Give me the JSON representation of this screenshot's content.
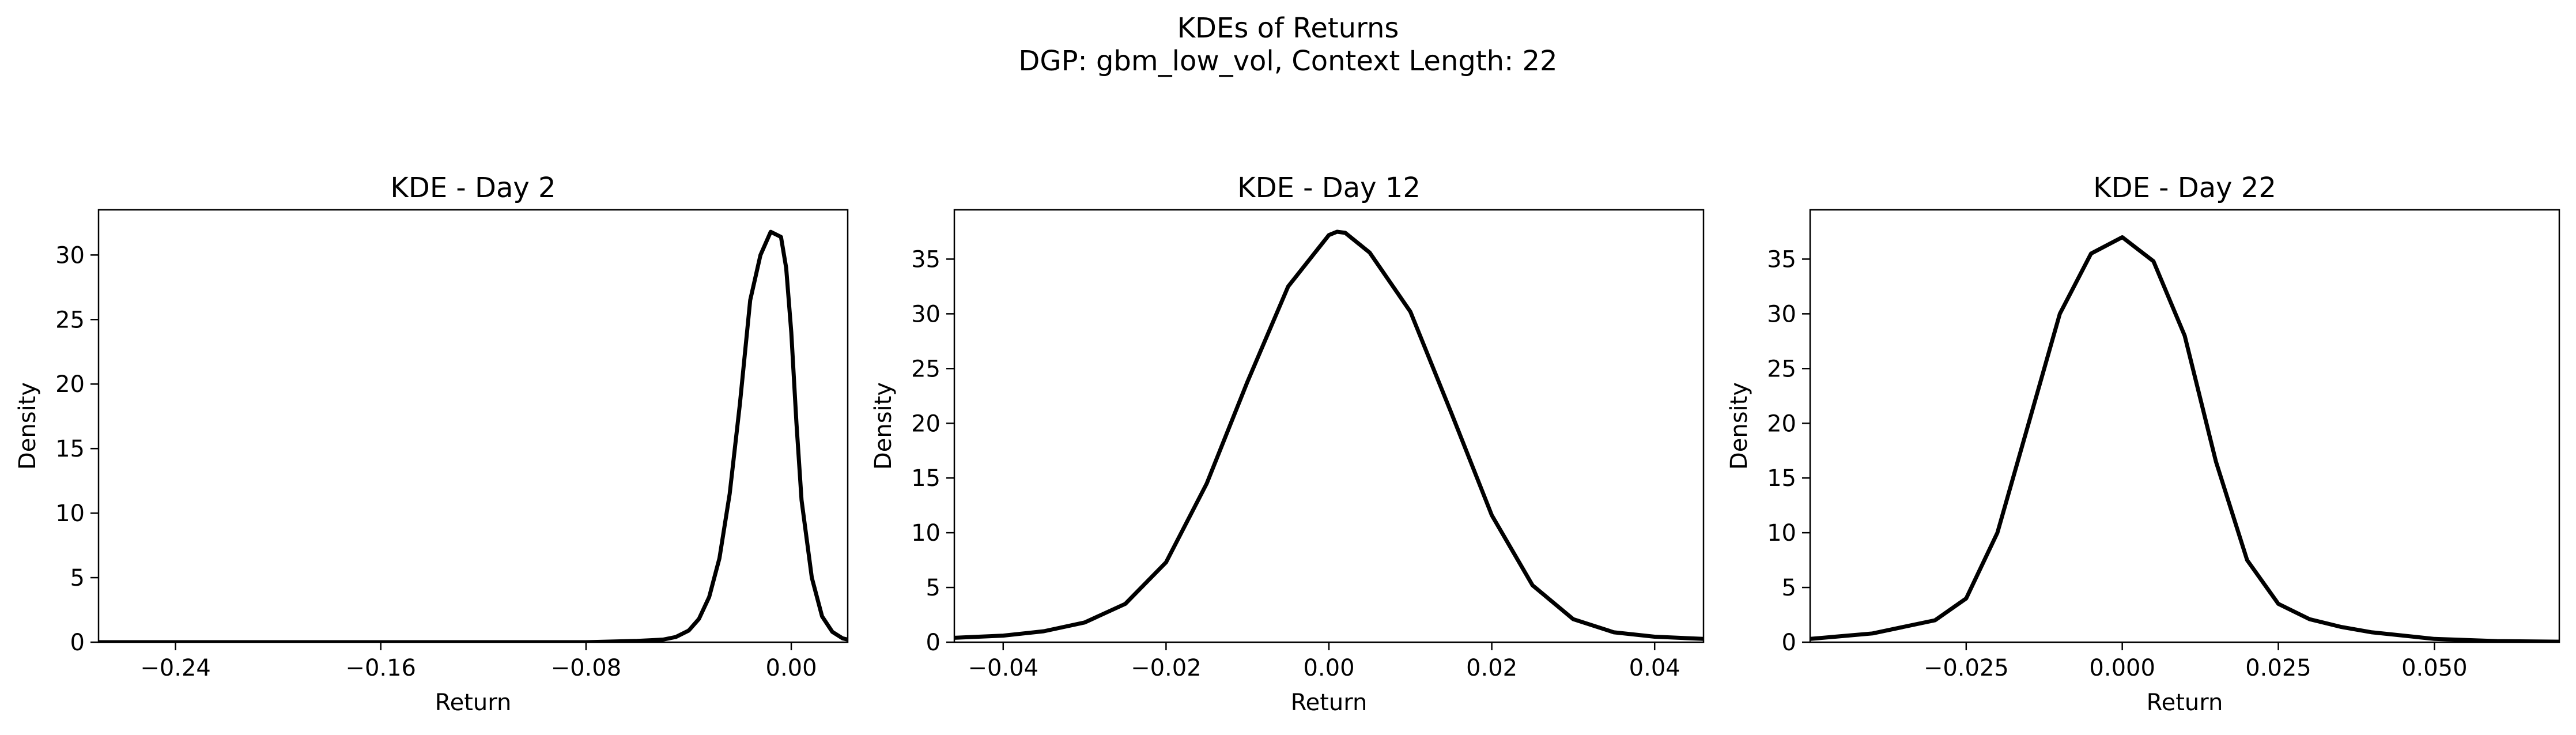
{
  "figure": {
    "title": "KDEs of Returns",
    "subtitle": "DGP: gbm_low_vol, Context Length: 22",
    "line_color": "#000000"
  },
  "chart_data": [
    {
      "type": "line",
      "title": "KDE - Day 2",
      "xlabel": "Return",
      "ylabel": "Density",
      "xlim": [
        -0.27,
        0.022
      ],
      "ylim": [
        0,
        33.5
      ],
      "xticks": [
        -0.24,
        -0.16,
        -0.08,
        0.0
      ],
      "xtick_labels": [
        "−0.24",
        "−0.16",
        "−0.08",
        "0.00"
      ],
      "yticks": [
        0,
        5,
        10,
        15,
        20,
        25,
        30
      ],
      "ytick_labels": [
        "0",
        "5",
        "10",
        "15",
        "20",
        "25",
        "30"
      ],
      "grid": false,
      "series": [
        {
          "x": [
            -0.27,
            -0.24,
            -0.2,
            -0.16,
            -0.12,
            -0.08,
            -0.06,
            -0.05,
            -0.045,
            -0.04,
            -0.036,
            -0.032,
            -0.028,
            -0.024,
            -0.02,
            -0.016,
            -0.012,
            -0.008,
            -0.004,
            -0.002,
            0.0,
            0.002,
            0.004,
            0.008,
            0.012,
            0.016,
            0.02,
            0.022
          ],
          "y": [
            0,
            0,
            0,
            0,
            0,
            0,
            0.1,
            0.2,
            0.4,
            0.9,
            1.8,
            3.5,
            6.5,
            11.5,
            18.5,
            26.5,
            30.0,
            31.8,
            31.4,
            29.0,
            24.0,
            17.0,
            11.0,
            5.0,
            2.0,
            0.8,
            0.3,
            0.2
          ]
        }
      ]
    },
    {
      "type": "line",
      "title": "KDE - Day 12",
      "xlabel": "Return",
      "ylabel": "Density",
      "xlim": [
        -0.046,
        0.046
      ],
      "ylim": [
        0,
        39.5
      ],
      "xticks": [
        -0.04,
        -0.02,
        0.0,
        0.02,
        0.04
      ],
      "xtick_labels": [
        "−0.04",
        "−0.02",
        "0.00",
        "0.02",
        "0.04"
      ],
      "yticks": [
        0,
        5,
        10,
        15,
        20,
        25,
        30,
        35
      ],
      "ytick_labels": [
        "0",
        "5",
        "10",
        "15",
        "20",
        "25",
        "30",
        "35"
      ],
      "grid": false,
      "series": [
        {
          "x": [
            -0.046,
            -0.04,
            -0.035,
            -0.03,
            -0.025,
            -0.02,
            -0.015,
            -0.01,
            -0.005,
            0.0,
            0.001,
            0.002,
            0.005,
            0.01,
            0.015,
            0.02,
            0.025,
            0.03,
            0.035,
            0.04,
            0.046
          ],
          "y": [
            0.4,
            0.6,
            1.0,
            1.8,
            3.5,
            7.3,
            14.5,
            23.8,
            32.5,
            37.2,
            37.5,
            37.4,
            35.6,
            30.2,
            21.0,
            11.6,
            5.2,
            2.1,
            0.9,
            0.5,
            0.3
          ]
        }
      ]
    },
    {
      "type": "line",
      "title": "KDE - Day 22",
      "xlabel": "Return",
      "ylabel": "Density",
      "xlim": [
        -0.05,
        0.07
      ],
      "ylim": [
        0,
        39.5
      ],
      "xticks": [
        -0.025,
        0.0,
        0.025,
        0.05
      ],
      "xtick_labels": [
        "−0.025",
        "0.000",
        "0.025",
        "0.050"
      ],
      "yticks": [
        0,
        5,
        10,
        15,
        20,
        25,
        30,
        35
      ],
      "ytick_labels": [
        "0",
        "5",
        "10",
        "15",
        "20",
        "25",
        "30",
        "35"
      ],
      "grid": false,
      "series": [
        {
          "x": [
            -0.05,
            -0.04,
            -0.03,
            -0.025,
            -0.02,
            -0.015,
            -0.01,
            -0.005,
            0.0,
            0.005,
            0.01,
            0.015,
            0.02,
            0.025,
            0.03,
            0.035,
            0.04,
            0.05,
            0.06,
            0.07
          ],
          "y": [
            0.3,
            0.8,
            2.0,
            4.0,
            10.0,
            20.0,
            30.0,
            35.5,
            37.0,
            34.8,
            28.0,
            16.5,
            7.5,
            3.5,
            2.1,
            1.4,
            0.9,
            0.3,
            0.1,
            0.05
          ]
        }
      ]
    }
  ]
}
